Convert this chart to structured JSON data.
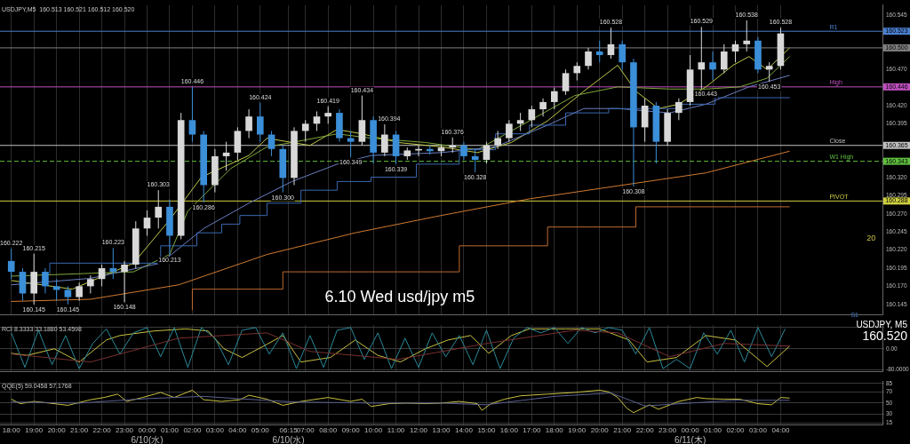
{
  "chart_data": [
    {
      "type": "candlestick",
      "title": "USDJPY,M5  160.513 160.521 160.512 160.520",
      "xlim": [
        "--06-09T17:30",
        "--06-11T08:30"
      ],
      "xticks": [
        "--06-09T18:00",
        "--06-09T19:00",
        "--06-09T20:00",
        "--06-09T21:00",
        "--06-09T22:00",
        "--06-09T23:00",
        "--06-10T00:00",
        "--06-10T01:00",
        "--06-10T02:00",
        "--06-10T03:00",
        "--06-10T04:00",
        "--06-10T05:00",
        "--06-10T06:15",
        "--06-10T07:00",
        "--06-10T08:00",
        "--06-10T09:00",
        "--06-10T10:00",
        "--06-10T11:00",
        "--06-10T12:00",
        "--06-10T13:00",
        "--06-10T14:00",
        "--06-10T15:00",
        "--06-10T16:00",
        "--06-10T17:00",
        "--06-10T18:00",
        "--06-10T19:00",
        "--06-10T20:00",
        "--06-10T21:00",
        "--06-10T22:00",
        "--06-10T23:00",
        "--06-11T00:00",
        "--06-11T01:00",
        "--06-11T02:00",
        "--06-11T03:00",
        "--06-11T04:00"
      ],
      "ylim": [
        160.131,
        160.559
      ],
      "yticks": [
        160.545,
        {
          "value": 160.47,
          "label": "160.470"
        },
        {
          "value": 160.42,
          "label": "160.420"
        },
        160.395,
        {
          "value": 160.32,
          "label": "160.320"
        },
        160.295,
        {
          "value": 160.27,
          "label": "160.270"
        },
        160.245,
        {
          "value": 160.22,
          "label": "160.220"
        },
        160.195,
        {
          "value": 160.17,
          "label": "160.170"
        },
        160.145
      ],
      "grid": "x",
      "tick_labels": "y",
      "series": [
        {
          "type": "line",
          "color": "#d07a30",
          "x": [
            "--06-09T18:00",
            "--06-09T21:30",
            "--06-10T01:24",
            "--06-10T05:18",
            "--06-10T09:12",
            "--06-10T13:00",
            "--06-10T16:54",
            "--06-10T20:48",
            "--06-11T00:42",
            "--06-11T04:24"
          ],
          "values": [
            160.149,
            160.152,
            160.172,
            160.214,
            160.244,
            160.268,
            160.291,
            160.309,
            160.327,
            160.357
          ]
        },
        {
          "type": "step",
          "color": "#c06a30",
          "x": [
            "--06-10T02:00",
            "--06-10T06:00",
            "--06-10T13:48",
            "--06-10T17:42",
            "--06-10T21:36",
            "--06-11T01:42",
            "--06-11T04:24"
          ],
          "values": [
            160.137,
            160.166,
            160.19,
            160.226,
            160.252,
            160.28,
            160.28
          ]
        },
        {
          "type": "step",
          "color": "#3a68b0",
          "x": [
            "--06-09T19:42",
            "--06-10T00:36",
            "--06-10T02:12",
            "--06-10T03:18",
            "--06-10T04:06",
            "--06-10T05:18",
            "--06-10T06:48",
            "--06-10T08:24",
            "--06-10T09:54",
            "--06-10T11:54",
            "--06-10T13:48",
            "--06-10T15:24",
            "--06-10T16:54",
            "--06-10T18:30",
            "--06-10T20:24",
            "--06-10T23:30",
            "--06-11T01:06",
            "--06-11T02:36",
            "--06-11T04:24"
          ],
          "values": [
            160.187,
            160.202,
            160.226,
            160.244,
            160.256,
            160.268,
            160.285,
            160.303,
            160.315,
            160.321,
            160.339,
            160.359,
            160.381,
            160.393,
            160.41,
            160.416,
            160.422,
            160.431,
            160.431
          ]
        },
        {
          "type": "line",
          "color": "#6a7fc0",
          "x": [
            "--06-09T18:00",
            "--06-09T21:30",
            "--06-10T00:36",
            "--06-10T02:30",
            "--06-10T04:30",
            "--06-10T06:24",
            "--06-10T08:24",
            "--06-10T09:54",
            "--06-10T13:00",
            "--06-10T15:24",
            "--06-10T17:42",
            "--06-10T19:18",
            "--06-10T20:48",
            "--06-10T23:06",
            "--06-11T00:42",
            "--06-11T02:36",
            "--06-11T04:24"
          ],
          "values": [
            160.172,
            160.181,
            160.202,
            160.25,
            160.285,
            160.315,
            160.339,
            160.351,
            160.355,
            160.363,
            160.393,
            160.416,
            160.416,
            160.41,
            160.422,
            160.446,
            160.462
          ]
        },
        {
          "type": "line",
          "color": "#7fa83a",
          "x": [
            "--06-09T18:00",
            "--06-09T23:24",
            "--06-10T01:00",
            "--06-10T01:48",
            "--06-10T03:42",
            "--06-10T05:18",
            "--06-10T06:24",
            "--06-10T08:24",
            "--06-10T09:54",
            "--06-10T12:18",
            "--06-10T14:36",
            "--06-10T16:54",
            "--06-10T18:54",
            "--06-10T20:48",
            "--06-10T23:06",
            "--06-11T00:42",
            "--06-11T02:12",
            "--06-11T03:24",
            "--06-11T04:24"
          ],
          "values": [
            160.184,
            160.19,
            160.214,
            160.274,
            160.333,
            160.363,
            160.369,
            160.381,
            160.375,
            160.369,
            160.359,
            160.399,
            160.434,
            160.446,
            160.443,
            160.443,
            160.446,
            160.458,
            160.488
          ]
        },
        {
          "type": "line",
          "color": "#c0c84a",
          "x": [
            "--06-09T18:00",
            "--06-09T20:42",
            "--06-09T23:24",
            "--06-10T01:00",
            "--06-10T02:24",
            "--06-10T04:30",
            "--06-10T05:18",
            "--06-10T06:24",
            "--06-10T07:12",
            "--06-10T08:24",
            "--06-10T09:30",
            "--06-10T11:06",
            "--06-10T13:00",
            "--06-10T14:36",
            "--06-10T16:06",
            "--06-10T17:42",
            "--06-10T19:18",
            "--06-10T20:48",
            "--06-10T21:36",
            "--06-10T22:36",
            "--06-10T23:30",
            "--06-11T00:42",
            "--06-11T01:54",
            "--06-11T02:36",
            "--06-11T03:24",
            "--06-11T04:24"
          ],
          "values": [
            160.178,
            160.166,
            160.202,
            160.262,
            160.321,
            160.351,
            160.375,
            160.369,
            160.365,
            160.387,
            160.381,
            160.369,
            160.363,
            160.355,
            160.369,
            160.399,
            160.44,
            160.476,
            160.44,
            160.416,
            160.422,
            160.446,
            160.476,
            160.488,
            160.47,
            160.5
          ]
        },
        {
          "type": "candlestick",
          "color": "#d8d8d8",
          "x": [
            "--06-09T19:00",
            "--06-09T21:00",
            "--06-09T21:30",
            "--06-09T22:00",
            "--06-09T23:00",
            "--06-09T23:30",
            "--06-10T00:00",
            "--06-10T00:30",
            "--06-10T01:30",
            "--06-10T03:00",
            "--06-10T03:30",
            "--06-10T04:00",
            "--06-10T04:30",
            "--06-10T06:30",
            "--06-10T07:00",
            "--06-10T07:30",
            "--06-10T08:00",
            "--06-10T09:30",
            "--06-10T10:30",
            "--06-10T11:30",
            "--06-10T12:00",
            "--06-10T13:00",
            "--06-10T13:30",
            "--06-10T15:00",
            "--06-10T15:30",
            "--06-10T16:00",
            "--06-10T16:30",
            "--06-10T17:00",
            "--06-10T17:30",
            "--06-10T18:00",
            "--06-10T18:30",
            "--06-10T19:00",
            "--06-10T19:30",
            "--06-10T20:30",
            "--06-10T22:00",
            "--06-10T23:00",
            "--06-10T23:30",
            "--06-11T00:00",
            "--06-11T00:30",
            "--06-11T01:30",
            "--06-11T02:00",
            "--06-11T02:30",
            "--06-11T03:30",
            "--06-11T04:00"
          ],
          "ohlc": [
            [
              160.16,
              160.215,
              160.145,
              160.19
            ],
            [
              160.155,
              160.175,
              160.15,
              160.17
            ],
            [
              160.17,
              160.185,
              160.16,
              160.18
            ],
            [
              160.18,
              160.2,
              160.17,
              160.195
            ],
            [
              160.19,
              160.205,
              160.148,
              160.2
            ],
            [
              160.2,
              160.26,
              160.195,
              160.25
            ],
            [
              160.25,
              160.275,
              160.24,
              160.265
            ],
            [
              160.265,
              160.303,
              160.25,
              160.28
            ],
            [
              160.24,
              160.41,
              160.235,
              160.4
            ],
            [
              160.31,
              160.36,
              160.3,
              160.35
            ],
            [
              160.35,
              160.37,
              160.33,
              160.355
            ],
            [
              160.355,
              160.39,
              160.345,
              160.385
            ],
            [
              160.385,
              160.415,
              160.375,
              160.405
            ],
            [
              160.32,
              160.39,
              160.31,
              160.385
            ],
            [
              160.385,
              160.4,
              160.37,
              160.395
            ],
            [
              160.395,
              160.412,
              160.385,
              160.405
            ],
            [
              160.405,
              160.419,
              160.395,
              160.41
            ],
            [
              160.37,
              160.434,
              160.365,
              160.4
            ],
            [
              160.355,
              160.394,
              160.35,
              160.38
            ],
            [
              160.35,
              160.362,
              160.345,
              160.358
            ],
            [
              160.358,
              160.365,
              160.35,
              160.36
            ],
            [
              160.357,
              160.366,
              160.35,
              160.362
            ],
            [
              160.362,
              160.376,
              160.355,
              160.365
            ],
            [
              160.345,
              160.37,
              160.34,
              160.365
            ],
            [
              160.365,
              160.385,
              160.36,
              160.375
            ],
            [
              160.375,
              160.4,
              160.37,
              160.395
            ],
            [
              160.395,
              160.41,
              160.385,
              160.4
            ],
            [
              160.4,
              160.42,
              160.39,
              160.415
            ],
            [
              160.415,
              160.43,
              160.405,
              160.425
            ],
            [
              160.425,
              160.445,
              160.415,
              160.44
            ],
            [
              160.44,
              160.47,
              160.435,
              160.465
            ],
            [
              160.465,
              160.48,
              160.455,
              160.475
            ],
            [
              160.475,
              160.5,
              160.47,
              160.495
            ],
            [
              160.49,
              160.528,
              160.485,
              160.505
            ],
            [
              160.39,
              160.43,
              160.37,
              160.42
            ],
            [
              160.37,
              160.415,
              160.365,
              160.41
            ],
            [
              160.41,
              160.43,
              160.4,
              160.425
            ],
            [
              160.425,
              160.49,
              160.42,
              160.47
            ],
            [
              160.47,
              160.529,
              160.443,
              160.48
            ],
            [
              160.47,
              160.505,
              160.465,
              160.495
            ],
            [
              160.495,
              160.51,
              160.48,
              160.505
            ],
            [
              160.505,
              160.538,
              160.495,
              160.51
            ],
            [
              160.47,
              160.48,
              160.453,
              160.475
            ],
            [
              160.475,
              160.528,
              160.47,
              160.52
            ]
          ]
        },
        {
          "type": "candlestick",
          "color": "#3b8ed8",
          "x": [
            "--06-09T18:00",
            "--06-09T18:30",
            "--06-09T19:30",
            "--06-09T20:00",
            "--06-09T20:30",
            "--06-09T22:30",
            "--06-10T01:00",
            "--06-10T02:00",
            "--06-10T02:30",
            "--06-10T05:00",
            "--06-10T05:30",
            "--06-10T06:00",
            "--06-10T08:30",
            "--06-10T09:00",
            "--06-10T10:00",
            "--06-10T11:00",
            "--06-10T12:30",
            "--06-10T14:00",
            "--06-10T14:30",
            "--06-10T20:00",
            "--06-10T21:00",
            "--06-10T21:30",
            "--06-10T22:30",
            "--06-11T01:00",
            "--06-11T03:00"
          ],
          "ohlc": [
            [
              160.205,
              160.222,
              160.18,
              160.19
            ],
            [
              160.19,
              160.195,
              160.15,
              160.16
            ],
            [
              160.19,
              160.195,
              160.16,
              160.17
            ],
            [
              160.17,
              160.18,
              160.15,
              160.165
            ],
            [
              160.165,
              160.17,
              160.145,
              160.155
            ],
            [
              160.195,
              160.223,
              160.18,
              160.19
            ],
            [
              160.28,
              160.29,
              160.213,
              160.24
            ],
            [
              160.4,
              160.446,
              160.37,
              160.38
            ],
            [
              160.38,
              160.385,
              160.286,
              160.31
            ],
            [
              160.405,
              160.424,
              160.37,
              160.38
            ],
            [
              160.38,
              160.385,
              160.35,
              160.36
            ],
            [
              160.36,
              160.365,
              160.3,
              160.32
            ],
            [
              160.41,
              160.415,
              160.37,
              160.375
            ],
            [
              160.375,
              160.385,
              160.349,
              160.37
            ],
            [
              160.4,
              160.405,
              160.34,
              160.355
            ],
            [
              160.38,
              160.385,
              160.339,
              160.35
            ],
            [
              160.36,
              160.365,
              160.352,
              160.357
            ],
            [
              160.365,
              160.37,
              160.345,
              160.35
            ],
            [
              160.35,
              160.36,
              160.328,
              160.345
            ],
            [
              160.495,
              160.51,
              160.48,
              160.49
            ],
            [
              160.505,
              160.51,
              160.47,
              160.48
            ],
            [
              160.48,
              160.485,
              160.308,
              160.39
            ],
            [
              160.42,
              160.425,
              160.34,
              160.37
            ],
            [
              160.48,
              160.495,
              160.455,
              160.47
            ],
            [
              160.51,
              160.515,
              160.465,
              160.47
            ]
          ]
        }
      ],
      "ref_lines": [
        {
          "axis": "y",
          "value": 160.523,
          "label": "R1",
          "color": "#4a7fd0"
        },
        {
          "axis": "y",
          "value": 160.5,
          "label": null,
          "color": "#808080"
        },
        {
          "axis": "y",
          "value": 160.446,
          "label": "High",
          "color": "#c050c0"
        },
        {
          "axis": "y",
          "value": 160.365,
          "label": "Close",
          "color": "#c0c0c0"
        },
        {
          "axis": "y",
          "value": 160.343,
          "label": "W1 High",
          "color": "#60c040",
          "line_style": "dashed"
        },
        {
          "axis": "y",
          "value": 160.288,
          "label": "PIVOT",
          "color": "#d0d040"
        }
      ],
      "annotations": [
        "6.10 Wed usd/jpy m5",
        "20",
        "S1",
        "160.523",
        "160.500",
        "160.446",
        "160.365",
        "160.343",
        "160.288",
        {
          "text": "160.222",
          "x": "--06-09T18:00",
          "y": 160.222
        },
        {
          "text": "160.215",
          "x": "--06-09T19:00",
          "y": 160.215
        },
        {
          "text": "160.145",
          "x": "--06-09T19:00",
          "y": 160.145
        },
        {
          "text": "160.145",
          "x": "--06-09T20:30",
          "y": 160.145
        },
        {
          "text": "160.223",
          "x": "--06-09T22:30",
          "y": 160.223
        },
        {
          "text": "160.148",
          "x": "--06-09T23:00",
          "y": 160.148
        },
        {
          "text": "160.303",
          "x": "--06-10T00:30",
          "y": 160.303
        },
        {
          "text": "160.213",
          "x": "--06-10T01:00",
          "y": 160.213
        },
        {
          "text": "160.446",
          "x": "--06-10T02:00",
          "y": 160.446
        },
        {
          "text": "160.286",
          "x": "--06-10T02:30",
          "y": 160.286
        },
        {
          "text": "160.424",
          "x": "--06-10T05:00",
          "y": 160.424
        },
        {
          "text": "160.300",
          "x": "--06-10T06:00",
          "y": 160.3
        },
        {
          "text": "160.419",
          "x": "--06-10T08:00",
          "y": 160.419
        },
        {
          "text": "160.349",
          "x": "--06-10T09:00",
          "y": 160.349
        },
        {
          "text": "160.434",
          "x": "--06-10T09:30",
          "y": 160.434
        },
        {
          "text": "160.394",
          "x": "--06-10T10:30",
          "y": 160.394
        },
        {
          "text": "160.339",
          "x": "--06-10T11:00",
          "y": 160.339
        },
        {
          "text": "160.376",
          "x": "--06-10T13:30",
          "y": 160.376
        },
        {
          "text": "160.328",
          "x": "--06-10T14:30",
          "y": 160.328
        },
        {
          "text": "160.528",
          "x": "--06-10T20:30",
          "y": 160.528
        },
        {
          "text": "160.308",
          "x": "--06-10T21:30",
          "y": 160.308
        },
        {
          "text": "160.529",
          "x": "--06-11T00:30",
          "y": 160.529
        },
        {
          "text": "160.443",
          "x": "--06-11T00:30",
          "y": 160.443
        },
        {
          "text": "160.538",
          "x": "--06-11T02:30",
          "y": 160.538
        },
        {
          "text": "160.453",
          "x": "--06-11T03:30",
          "y": 160.453
        },
        {
          "text": "160.528",
          "x": "--06-11T04:00",
          "y": 160.528
        }
      ]
    },
    {
      "type": "line",
      "title": "RCI 8.3333 33.1880 53.4598",
      "xlim": [
        "--06-09T17:30",
        "--06-11T08:30"
      ],
      "xticks": [
        "--06-09T18:00",
        "--06-09T19:00",
        "--06-09T20:00",
        "--06-09T21:00",
        "--06-09T22:00",
        "--06-09T23:00",
        "--06-10T00:00",
        "--06-10T01:00",
        "--06-10T02:00",
        "--06-10T03:00",
        "--06-10T04:00",
        "--06-10T05:00",
        "--06-10T06:15",
        "--06-10T07:00",
        "--06-10T08:00",
        "--06-10T09:00",
        "--06-10T10:00",
        "--06-10T11:00",
        "--06-10T12:00",
        "--06-10T13:00",
        "--06-10T14:00",
        "--06-10T15:00",
        "--06-10T16:00",
        "--06-10T17:00",
        "--06-10T18:00",
        "--06-10T19:00",
        "--06-10T20:00",
        "--06-10T21:00",
        "--06-10T22:00",
        "--06-10T23:00",
        "--06-11T00:00",
        "--06-11T01:00",
        "--06-11T02:00",
        "--06-11T03:00",
        "--06-11T04:00"
      ],
      "ylim": [
        -85,
        90
      ],
      "yticks": [
        {
          "value": 80,
          "label": null
        },
        {
          "value": 0,
          "label": "0.00"
        },
        {
          "value": -80,
          "label": "-80.0000"
        }
      ],
      "grid": true,
      "tick_labels": "y",
      "series": [
        {
          "color": "#7a3030",
          "x": [
            "--06-09T18:00",
            "--06-09T21:30",
            "--06-10T01:24",
            "--06-10T05:18",
            "--06-10T07:12",
            "--06-10T11:06",
            "--06-10T15:00",
            "--06-10T18:54",
            "--06-10T20:48",
            "--06-10T23:06",
            "--06-11T01:30",
            "--06-11T04:24"
          ],
          "values": [
            -20,
            -50,
            40,
            60,
            -10,
            -40,
            20,
            70,
            60,
            -30,
            20,
            10
          ]
        },
        {
          "color": "#2a8a9a",
          "x": [
            "--06-09T18:00",
            "--06-09T18:36",
            "--06-09T19:12",
            "--06-09T19:48",
            "--06-09T20:24",
            "--06-09T21:00",
            "--06-09T21:36",
            "--06-09T22:12",
            "--06-09T22:48",
            "--06-09T23:24",
            "--06-10T00:00",
            "--06-10T00:36",
            "--06-10T01:12",
            "--06-10T01:48",
            "--06-10T02:24",
            "--06-10T03:00",
            "--06-10T03:36",
            "--06-10T04:12",
            "--06-10T04:48",
            "--06-10T05:24",
            "--06-10T06:00",
            "--06-10T06:36",
            "--06-10T07:12",
            "--06-10T07:48",
            "--06-10T08:24",
            "--06-10T09:00",
            "--06-10T09:36",
            "--06-10T10:12",
            "--06-10T10:48",
            "--06-10T11:24",
            "--06-10T12:00",
            "--06-10T12:36",
            "--06-10T13:12",
            "--06-10T13:48",
            "--06-10T14:24",
            "--06-10T15:00",
            "--06-10T15:36",
            "--06-10T16:12",
            "--06-10T16:48",
            "--06-10T17:24",
            "--06-10T18:00",
            "--06-10T18:36",
            "--06-10T19:12",
            "--06-10T19:48",
            "--06-10T20:24",
            "--06-10T21:00",
            "--06-10T21:36",
            "--06-10T22:12",
            "--06-10T22:48",
            "--06-10T23:24",
            "--06-11T00:00",
            "--06-11T00:36",
            "--06-11T01:12",
            "--06-11T01:48",
            "--06-11T02:24",
            "--06-11T03:00",
            "--06-11T03:36",
            "--06-11T04:12"
          ],
          "values": [
            60,
            -70,
            70,
            -60,
            50,
            -75,
            20,
            75,
            -20,
            60,
            80,
            -30,
            80,
            -70,
            80,
            40,
            -60,
            70,
            80,
            -20,
            60,
            -75,
            50,
            -70,
            70,
            80,
            -40,
            60,
            -75,
            40,
            -70,
            60,
            -30,
            50,
            -60,
            70,
            -75,
            40,
            80,
            60,
            80,
            20,
            80,
            60,
            80,
            70,
            -20,
            80,
            -75,
            -40,
            -75,
            60,
            -20,
            70,
            -50,
            80,
            -30,
            75
          ]
        },
        {
          "color": "#c8c040",
          "x": [
            "--06-09T18:00",
            "--06-09T18:42",
            "--06-09T19:54",
            "--06-09T21:00",
            "--06-09T22:12",
            "--06-09T22:48",
            "--06-10T00:18",
            "--06-10T01:42",
            "--06-10T02:42",
            "--06-10T03:24",
            "--06-10T04:12",
            "--06-10T05:18",
            "--06-10T06:00",
            "--06-10T06:48",
            "--06-10T08:06",
            "--06-10T09:12",
            "--06-10T10:12",
            "--06-10T11:12",
            "--06-10T12:18",
            "--06-10T13:18",
            "--06-10T14:18",
            "--06-10T15:06",
            "--06-10T16:06",
            "--06-10T16:54",
            "--06-10T18:30",
            "--06-10T20:00",
            "--06-10T21:18",
            "--06-10T22:06",
            "--06-10T23:24",
            "--06-11T00:42",
            "--06-11T02:00",
            "--06-11T03:24",
            "--06-11T04:24"
          ],
          "values": [
            -17,
            -25,
            0,
            -50,
            33,
            50,
            67,
            75,
            67,
            0,
            -33,
            17,
            50,
            -50,
            -33,
            33,
            -25,
            -50,
            0,
            33,
            50,
            -17,
            50,
            75,
            75,
            75,
            33,
            -50,
            -33,
            50,
            33,
            -67,
            10
          ]
        }
      ],
      "annotations": [
        "USDJPY, M5",
        "160.520"
      ]
    },
    {
      "type": "line",
      "title": "QQE(5) 59.0458 57.1768",
      "xlim": [
        "--06-09T17:30",
        "--06-11T08:30"
      ],
      "xticks": [
        {
          "value": "--06-09T18:00",
          "label": "18:00"
        },
        {
          "value": "--06-09T19:00",
          "label": "19:00"
        },
        {
          "value": "--06-09T20:00",
          "label": "20:00"
        },
        {
          "value": "--06-09T21:00",
          "label": "21:00"
        },
        {
          "value": "--06-09T22:00",
          "label": "22:00"
        },
        {
          "value": "--06-09T23:00",
          "label": "23:00"
        },
        {
          "value": "--06-10T00:00",
          "label": "00:00\n6/10(水)"
        },
        {
          "value": "--06-10T01:00",
          "label": "01:00"
        },
        {
          "value": "--06-10T02:00",
          "label": "02:00"
        },
        {
          "value": "--06-10T03:00",
          "label": "03:00"
        },
        {
          "value": "--06-10T04:00",
          "label": "04:00"
        },
        {
          "value": "--06-10T05:00",
          "label": "05:00"
        },
        {
          "value": "--06-10T06:15",
          "label": "06:15\n6/10(水)"
        },
        {
          "value": "--06-10T07:00",
          "label": "07:00"
        },
        {
          "value": "--06-10T08:00",
          "label": "08:00"
        },
        {
          "value": "--06-10T09:00",
          "label": "09:00"
        },
        {
          "value": "--06-10T10:00",
          "label": "10:00"
        },
        {
          "value": "--06-10T11:00",
          "label": "11:00"
        },
        {
          "value": "--06-10T12:00",
          "label": "12:00"
        },
        {
          "value": "--06-10T13:00",
          "label": "13:00"
        },
        {
          "value": "--06-10T14:00",
          "label": "14:00"
        },
        {
          "value": "--06-10T15:00",
          "label": "15:00"
        },
        {
          "value": "--06-10T16:00",
          "label": "16:00"
        },
        {
          "value": "--06-10T17:00",
          "label": "17:00"
        },
        {
          "value": "--06-10T18:00",
          "label": "18:00"
        },
        {
          "value": "--06-10T19:00",
          "label": "19:00"
        },
        {
          "value": "--06-10T20:00",
          "label": "20:00"
        },
        {
          "value": "--06-10T21:00",
          "label": "21:00"
        },
        {
          "value": "--06-10T22:00",
          "label": "22:00"
        },
        {
          "value": "--06-10T23:00",
          "label": "23:00"
        },
        {
          "value": "--06-11T00:00",
          "label": "00:00\n6/11(木)"
        },
        {
          "value": "--06-11T01:00",
          "label": "01:00"
        },
        {
          "value": "--06-11T02:00",
          "label": "02:00"
        },
        {
          "value": "--06-11T03:00",
          "label": "03:00"
        },
        {
          "value": "--06-11T04:00",
          "label": "04:00"
        }
      ],
      "ylim": [
        12,
        88
      ],
      "yticks": [
        85,
        70,
        50,
        30,
        15
      ],
      "grid": true,
      "series": [
        {
          "color": "#5a6090",
          "x": [
            "--06-09T18:00",
            "--06-09T21:00",
            "--06-10T00:00",
            "--06-10T02:30",
            "--06-10T04:00",
            "--06-10T06:30",
            "--06-10T10:00",
            "--06-10T13:00",
            "--06-10T15:00",
            "--06-10T18:00",
            "--06-10T20:30",
            "--06-10T22:00",
            "--06-11T00:00",
            "--06-11T02:00",
            "--06-11T04:24"
          ],
          "values": [
            52,
            50,
            58,
            62,
            58,
            52,
            50,
            50,
            47,
            62,
            68,
            45,
            50,
            55,
            55
          ]
        },
        {
          "color": "#c8c040",
          "x": [
            "--06-09T18:00",
            "--06-09T18:24",
            "--06-09T19:00",
            "--06-09T19:54",
            "--06-09T20:30",
            "--06-09T20:54",
            "--06-09T21:30",
            "--06-09T22:06",
            "--06-09T22:42",
            "--06-09T23:06",
            "--06-09T23:48",
            "--06-10T00:36",
            "--06-10T01:12",
            "--06-10T02:00",
            "--06-10T02:30",
            "--06-10T03:18",
            "--06-10T04:06",
            "--06-10T04:30",
            "--06-10T05:18",
            "--06-10T06:00",
            "--06-10T06:48",
            "--06-10T08:00",
            "--06-10T09:00",
            "--06-10T09:30",
            "--06-10T09:54",
            "--06-10T10:42",
            "--06-10T11:30",
            "--06-10T12:18",
            "--06-10T13:00",
            "--06-10T13:48",
            "--06-10T14:36",
            "--06-10T14:48",
            "--06-10T15:12",
            "--06-10T15:48",
            "--06-10T16:30",
            "--06-10T17:42",
            "--06-10T18:54",
            "--06-10T20:00",
            "--06-10T20:24",
            "--06-10T20:48",
            "--06-10T21:12",
            "--06-10T21:30",
            "--06-10T22:12",
            "--06-10T22:36",
            "--06-10T23:30",
            "--06-11T00:18",
            "--06-11T00:42",
            "--06-11T01:30",
            "--06-11T02:12",
            "--06-11T03:00",
            "--06-11T03:36",
            "--06-11T04:00",
            "--06-11T04:24"
          ],
          "values": [
            57,
            49,
            53,
            49,
            46,
            50,
            56,
            60,
            66,
            53,
            60,
            69,
            60,
            73,
            56,
            53,
            56,
            64,
            57,
            46,
            53,
            60,
            53,
            57,
            44,
            49,
            50,
            49,
            50,
            53,
            49,
            37,
            49,
            57,
            63,
            66,
            69,
            73,
            70,
            60,
            41,
            33,
            47,
            39,
            53,
            60,
            58,
            57,
            57,
            49,
            47,
            60,
            59
          ]
        }
      ]
    }
  ]
}
